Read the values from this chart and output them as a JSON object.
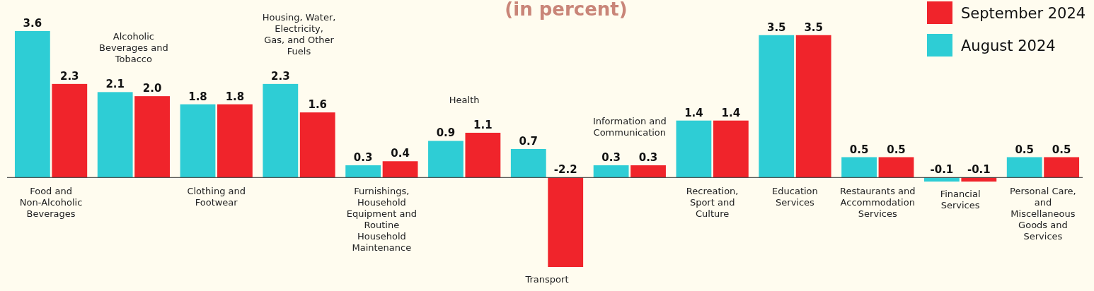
{
  "chart_data": {
    "type": "bar",
    "title": "(in percent)",
    "categories": [
      "Food and Non-Alcoholic Beverages",
      "Alcoholic Beverages and Tobacco",
      "Clothing and Footwear",
      "Housing, Water, Electricity, Gas, and Other Fuels",
      "Furnishings, Household Equipment and Routine Household Maintenance",
      "Health",
      "Transport",
      "Information and Communication",
      "Recreation, Sport and Culture",
      "Education Services",
      "Restaurants and Accommodation Services",
      "Financial Services",
      "Personal Care, and Miscellaneous Goods and Services"
    ],
    "series": [
      {
        "name": "August 2024",
        "color": "#2ecdd5",
        "values": [
          3.6,
          2.1,
          1.8,
          2.3,
          0.3,
          0.9,
          0.7,
          0.3,
          1.4,
          3.5,
          0.5,
          -0.1,
          0.5
        ],
        "value_labels": [
          "3.6",
          "2.1",
          "1.8",
          "2.3",
          "0.3",
          "0.9",
          "0.7",
          "0.3",
          "1.4",
          "3.5",
          "0.5",
          "-0.1",
          "0.5"
        ]
      },
      {
        "name": "September 2024",
        "color": "#f0242b",
        "values": [
          2.3,
          2.0,
          1.8,
          1.6,
          0.4,
          1.1,
          -2.2,
          0.3,
          1.4,
          3.5,
          0.5,
          -0.1,
          0.5
        ],
        "value_labels": [
          "2.3",
          "2.0",
          "1.8",
          "1.6",
          "0.4",
          "1.1",
          "-2.2",
          "0.3",
          "1.4",
          "3.5",
          "0.5",
          "-0.1",
          "0.5"
        ]
      }
    ],
    "legend": "top right",
    "grid": false
  }
}
